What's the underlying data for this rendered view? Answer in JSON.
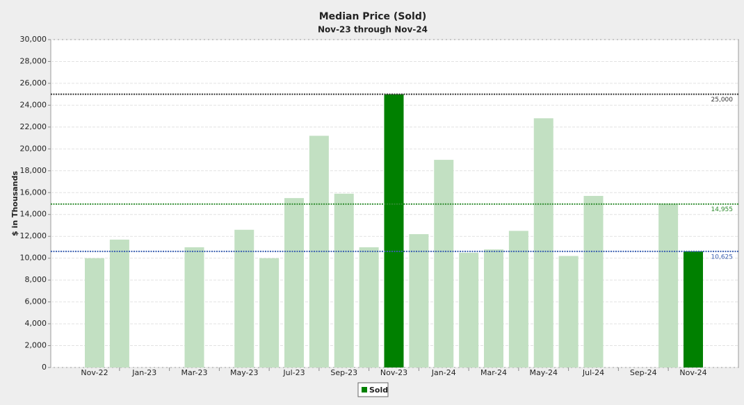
{
  "chart_data": {
    "type": "bar",
    "title": "Median Price (Sold)",
    "subtitle": "Nov-23 through Nov-24",
    "y_label": "$ in Thousands",
    "categories": [
      "Nov-22",
      null,
      "Jan-23",
      null,
      "Mar-23",
      null,
      "May-23",
      null,
      "Jul-23",
      null,
      "Sep-23",
      null,
      "Nov-23",
      null,
      "Jan-24",
      null,
      "Mar-24",
      null,
      "May-24",
      null,
      "Jul-24",
      null,
      "Sep-24",
      null,
      "Nov-24"
    ],
    "series": [
      {
        "name": "Sold",
        "color": "#008000",
        "values": [
          10000,
          11700,
          null,
          null,
          11000,
          null,
          12600,
          10000,
          15500,
          21200,
          15900,
          11000,
          25000,
          12200,
          19000,
          10500,
          10800,
          12500,
          22800,
          10200,
          15700,
          null,
          null,
          15000,
          10625
        ],
        "colors": [
          "#c2e0c2",
          "#c2e0c2",
          "#c2e0c2",
          "#c2e0c2",
          "#c2e0c2",
          "#c2e0c2",
          "#c2e0c2",
          "#c2e0c2",
          "#c2e0c2",
          "#c2e0c2",
          "#c2e0c2",
          "#c2e0c2",
          "#008000",
          "#c2e0c2",
          "#c2e0c2",
          "#c2e0c2",
          "#c2e0c2",
          "#c2e0c2",
          "#c2e0c2",
          "#c2e0c2",
          "#c2e0c2",
          "#c2e0c2",
          "#c2e0c2",
          "#c2e0c2",
          "#008000"
        ]
      }
    ],
    "reference_lines": [
      {
        "value": 25000,
        "label": "25,000",
        "color": "#333333"
      },
      {
        "value": 14955,
        "label": "14,955",
        "color": "#2e8b2e"
      },
      {
        "value": 10625,
        "label": "10,625",
        "color": "#3a5fb0"
      }
    ],
    "ylim": [
      0,
      30000
    ],
    "yticks": [
      0,
      {
        "value": 2000,
        "label": "2,000"
      },
      {
        "value": 4000,
        "label": "4,000"
      },
      {
        "value": 6000,
        "label": "6,000"
      },
      {
        "value": 8000,
        "label": "8,000"
      },
      {
        "value": 10000,
        "label": "10,000"
      },
      {
        "value": 12000,
        "label": "12,000"
      },
      {
        "value": 14000,
        "label": "14,000"
      },
      {
        "value": 16000,
        "label": "16,000"
      },
      {
        "value": 18000,
        "label": "18,000"
      },
      {
        "value": 20000,
        "label": "20,000"
      },
      {
        "value": 22000,
        "label": "22,000"
      },
      {
        "value": 24000,
        "label": "24,000"
      },
      {
        "value": 26000,
        "label": "26,000"
      },
      {
        "value": 28000,
        "label": "28,000"
      },
      {
        "value": 30000,
        "label": "30,000"
      }
    ],
    "grid": true
  }
}
